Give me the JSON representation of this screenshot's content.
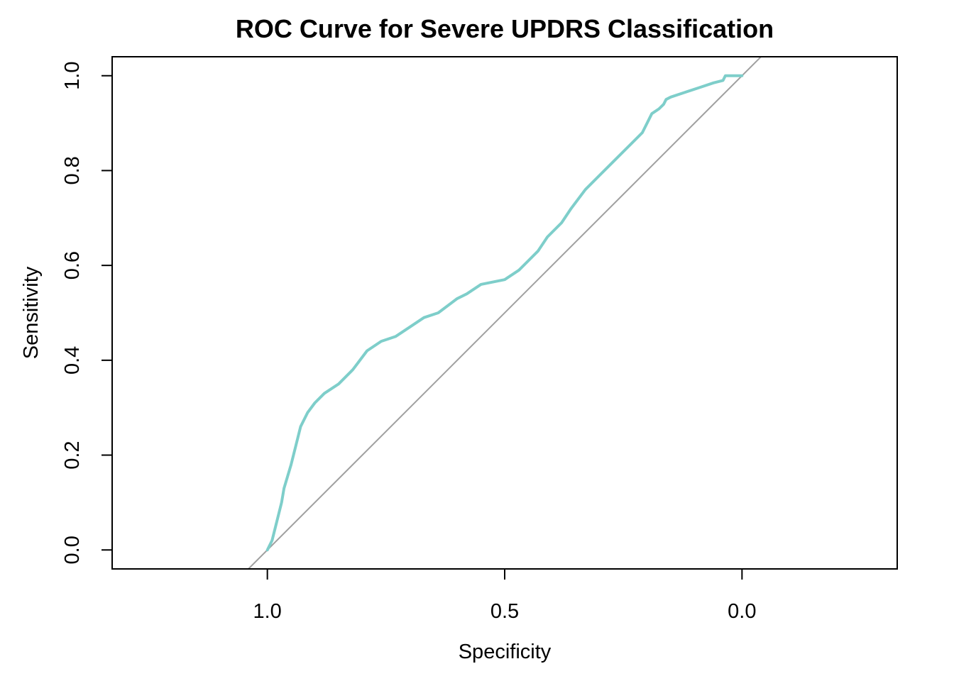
{
  "chart_data": {
    "type": "line",
    "title": "ROC Curve for Severe UPDRS Classification",
    "xlabel": "Specificity",
    "ylabel": "Sensitivity",
    "x_reversed": true,
    "xlim": [
      1.327,
      -0.327
    ],
    "ylim": [
      -0.04,
      1.04
    ],
    "x_ticks": [
      1.0,
      0.5,
      0.0
    ],
    "x_tick_labels": [
      "1.0",
      "0.5",
      "0.0"
    ],
    "y_ticks": [
      0.0,
      0.2,
      0.4,
      0.6,
      0.8,
      1.0
    ],
    "y_tick_labels": [
      "0.0",
      "0.2",
      "0.4",
      "0.6",
      "0.8",
      "1.0"
    ],
    "reference_line": "identity (sensitivity = 1 - specificity)",
    "grid": false,
    "colors": {
      "curve": "#7ececa",
      "reference": "#a0a0a0"
    },
    "series": [
      {
        "specificity": [
          1.0,
          0.99,
          0.98,
          0.97,
          0.965,
          0.95,
          0.94,
          0.93,
          0.915,
          0.9,
          0.88,
          0.85,
          0.82,
          0.79,
          0.76,
          0.73,
          0.7,
          0.67,
          0.64,
          0.6,
          0.58,
          0.55,
          0.5,
          0.47,
          0.45,
          0.43,
          0.41,
          0.38,
          0.36,
          0.33,
          0.3,
          0.27,
          0.24,
          0.21,
          0.2,
          0.19,
          0.175,
          0.165,
          0.16,
          0.15,
          0.12,
          0.09,
          0.06,
          0.04,
          0.035,
          0.03,
          0.0
        ],
        "sensitivity": [
          0.0,
          0.02,
          0.06,
          0.1,
          0.13,
          0.18,
          0.22,
          0.26,
          0.29,
          0.31,
          0.33,
          0.35,
          0.38,
          0.42,
          0.44,
          0.45,
          0.47,
          0.49,
          0.5,
          0.53,
          0.54,
          0.56,
          0.57,
          0.59,
          0.61,
          0.63,
          0.66,
          0.69,
          0.72,
          0.76,
          0.79,
          0.82,
          0.85,
          0.88,
          0.9,
          0.92,
          0.93,
          0.94,
          0.95,
          0.955,
          0.965,
          0.975,
          0.985,
          0.99,
          1.0,
          1.0,
          1.0
        ]
      }
    ]
  }
}
